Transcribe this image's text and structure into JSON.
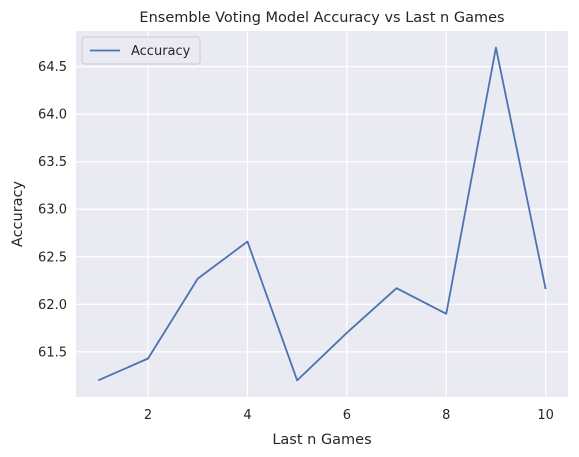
{
  "chart_data": {
    "type": "line",
    "title": "Ensemble Voting Model Accuracy vs Last n Games",
    "xlabel": "Last n Games",
    "ylabel": "Accuracy",
    "x": [
      1,
      2,
      3,
      4,
      5,
      6,
      7,
      8,
      9,
      10
    ],
    "series": [
      {
        "name": "Accuracy",
        "color": "#4c72b0",
        "values": [
          61.2,
          61.43,
          62.27,
          62.66,
          61.2,
          61.7,
          62.17,
          61.9,
          64.7,
          62.16
        ]
      }
    ],
    "xticks": [
      2,
      4,
      6,
      8,
      10
    ],
    "yticks": [
      61.5,
      62.0,
      62.5,
      63.0,
      63.5,
      64.0,
      64.5
    ],
    "ytick_labels": [
      "61.5",
      "62.0",
      "62.5",
      "63.0",
      "63.5",
      "64.0",
      "64.5"
    ],
    "xlim": [
      0.55,
      10.45
    ],
    "ylim": [
      61.025,
      64.875
    ],
    "grid": true,
    "legend_position": "top-left",
    "background": "#eaeaf2"
  }
}
